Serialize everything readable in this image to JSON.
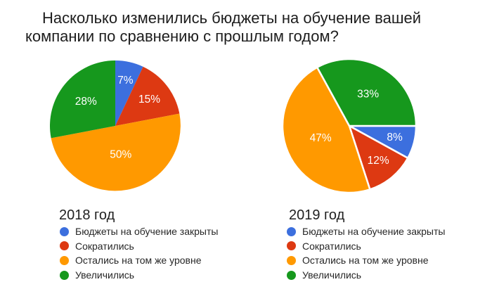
{
  "title": "Насколько изменились бюджеты на обучение вашей компании по сравнению с прошлым годом?",
  "colors": {
    "background": "#ffffff",
    "title_text": "#1d1d1d",
    "legend_text": "#272727",
    "slice_label_text": "#ffffff",
    "palette": {
      "blue": "#3c6fde",
      "red": "#dd3912",
      "orange": "#ff9900",
      "green": "#16981d"
    }
  },
  "chart_data": [
    {
      "type": "pie",
      "title": "2018 год",
      "categories": [
        "Бюджеты на обучение закрыты",
        "Сократились",
        "Остались на том же уровне",
        "Увеличились"
      ],
      "values": [
        7,
        15,
        50,
        28
      ],
      "unit": "%",
      "colors": [
        "#3c6fde",
        "#dd3912",
        "#ff9900",
        "#16981d"
      ],
      "rotation_deg": 0,
      "slice_border": "none",
      "labels_inside": true,
      "legend_position": "bottom"
    },
    {
      "type": "pie",
      "title": "2019 год",
      "categories": [
        "Бюджеты на обучение закрыты",
        "Сократились",
        "Остались на том же уровне",
        "Увеличились"
      ],
      "values": [
        8,
        12,
        47,
        33
      ],
      "unit": "%",
      "colors": [
        "#3c6fde",
        "#dd3912",
        "#ff9900",
        "#16981d"
      ],
      "rotation_deg": 90,
      "slice_border": "white",
      "labels_inside": true,
      "legend_position": "bottom"
    }
  ]
}
